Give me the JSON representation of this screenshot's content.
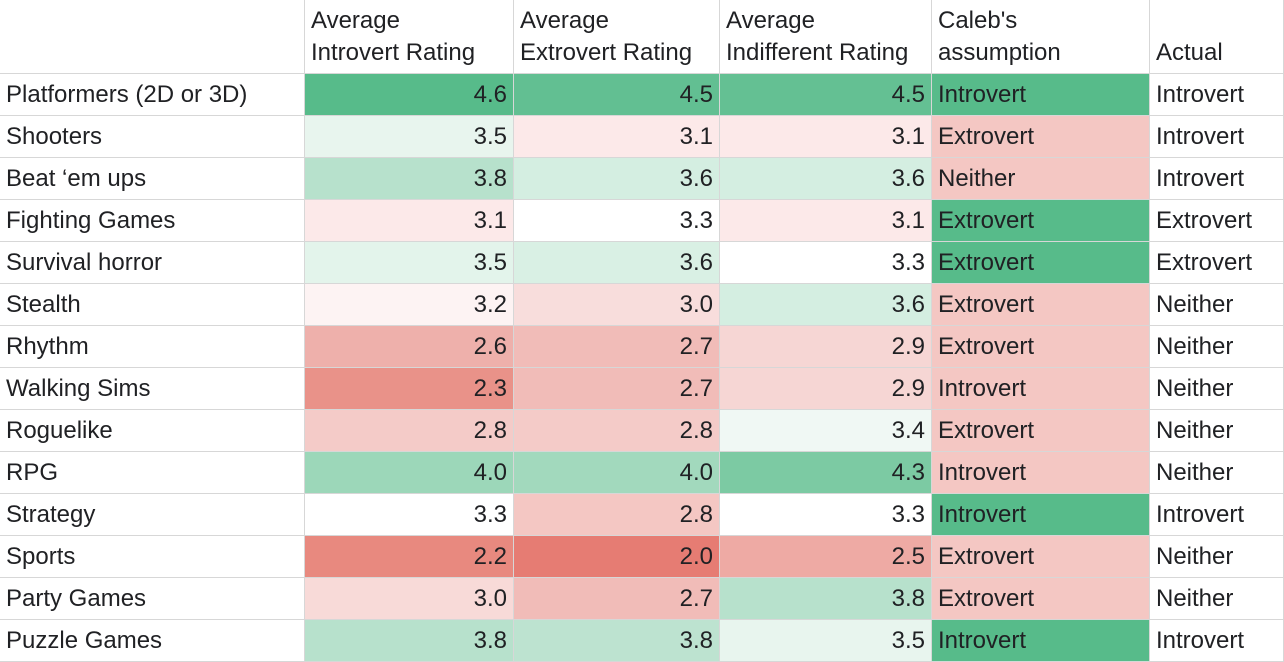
{
  "headers": [
    {
      "line1": "",
      "line2": ""
    },
    {
      "line1": "Average",
      "line2": "Introvert Rating"
    },
    {
      "line1": "Average",
      "line2": "Extrovert Rating"
    },
    {
      "line1": "Average",
      "line2": "Indifferent Rating"
    },
    {
      "line1": "Caleb's",
      "line2": "assumption"
    },
    {
      "line1": "",
      "line2": "Actual"
    }
  ],
  "rows": [
    {
      "genre": "Platformers (2D or 3D)",
      "introvert": "4.6",
      "extrovert": "4.5",
      "indifferent": "4.5",
      "assumption": "Introvert",
      "actual": "Introvert",
      "colors": [
        "#57bb8a",
        "#62bf92",
        "#64c093",
        "#57bb8a"
      ]
    },
    {
      "genre": "Shooters",
      "introvert": "3.5",
      "extrovert": "3.1",
      "indifferent": "3.1",
      "assumption": "Extrovert",
      "actual": "Introvert",
      "colors": [
        "#e8f5ee",
        "#fce9e9",
        "#fce9e9",
        "#f4c7c3"
      ]
    },
    {
      "genre": "Beat ‘em ups",
      "introvert": "3.8",
      "extrovert": "3.6",
      "indifferent": "3.6",
      "assumption": "Neither",
      "actual": "Introvert",
      "colors": [
        "#b7e1cc",
        "#d4eee1",
        "#d4eee1",
        "#f4c7c3"
      ]
    },
    {
      "genre": "Fighting Games",
      "introvert": "3.1",
      "extrovert": "3.3",
      "indifferent": "3.1",
      "assumption": "Extrovert",
      "actual": "Extrovert",
      "colors": [
        "#fce9e9",
        "#ffffff",
        "#fce9e9",
        "#57bb8a"
      ]
    },
    {
      "genre": "Survival horror",
      "introvert": "3.5",
      "extrovert": "3.6",
      "indifferent": "3.3",
      "assumption": "Extrovert",
      "actual": "Extrovert",
      "colors": [
        "#e3f4eb",
        "#d9f0e4",
        "#ffffff",
        "#57bb8a"
      ]
    },
    {
      "genre": "Stealth",
      "introvert": "3.2",
      "extrovert": "3.0",
      "indifferent": "3.6",
      "assumption": "Extrovert",
      "actual": "Neither",
      "colors": [
        "#fdf3f3",
        "#f8dddc",
        "#d4eee1",
        "#f4c7c3"
      ]
    },
    {
      "genre": "Rhythm",
      "introvert": "2.6",
      "extrovert": "2.7",
      "indifferent": "2.9",
      "assumption": "Extrovert",
      "actual": "Neither",
      "colors": [
        "#eeb0ab",
        "#f1bcb8",
        "#f6d6d4",
        "#f4c7c3"
      ]
    },
    {
      "genre": "Walking Sims",
      "introvert": "2.3",
      "extrovert": "2.7",
      "indifferent": "2.9",
      "assumption": "Introvert",
      "actual": "Neither",
      "colors": [
        "#e99289",
        "#f1bcb8",
        "#f6d6d4",
        "#f4c7c3"
      ]
    },
    {
      "genre": "Roguelike",
      "introvert": "2.8",
      "extrovert": "2.8",
      "indifferent": "3.4",
      "assumption": "Extrovert",
      "actual": "Neither",
      "colors": [
        "#f4cbc8",
        "#f4cbc8",
        "#f0f8f4",
        "#f4c7c3"
      ]
    },
    {
      "genre": "RPG",
      "introvert": "4.0",
      "extrovert": "4.0",
      "indifferent": "4.3",
      "assumption": "Introvert",
      "actual": "Neither",
      "colors": [
        "#9cd7b9",
        "#a2d9bd",
        "#7ccaa3",
        "#f4c7c3"
      ]
    },
    {
      "genre": "Strategy",
      "introvert": "3.3",
      "extrovert": "2.8",
      "indifferent": "3.3",
      "assumption": "Introvert",
      "actual": "Introvert",
      "colors": [
        "#ffffff",
        "#f4c7c3",
        "#ffffff",
        "#57bb8a"
      ]
    },
    {
      "genre": "Sports",
      "introvert": "2.2",
      "extrovert": "2.0",
      "indifferent": "2.5",
      "assumption": "Extrovert",
      "actual": "Neither",
      "colors": [
        "#e8897f",
        "#e67c73",
        "#eeaaa4",
        "#f4c7c3"
      ]
    },
    {
      "genre": "Party Games",
      "introvert": "3.0",
      "extrovert": "2.7",
      "indifferent": "3.8",
      "assumption": "Extrovert",
      "actual": "Neither",
      "colors": [
        "#f8dad8",
        "#f1bcb8",
        "#b7e1cc",
        "#f4c7c3"
      ]
    },
    {
      "genre": "Puzzle Games",
      "introvert": "3.8",
      "extrovert": "3.8",
      "indifferent": "3.5",
      "assumption": "Introvert",
      "actual": "Introvert",
      "colors": [
        "#b7e1cc",
        "#bde3d0",
        "#e8f5ee",
        "#57bb8a"
      ]
    }
  ]
}
